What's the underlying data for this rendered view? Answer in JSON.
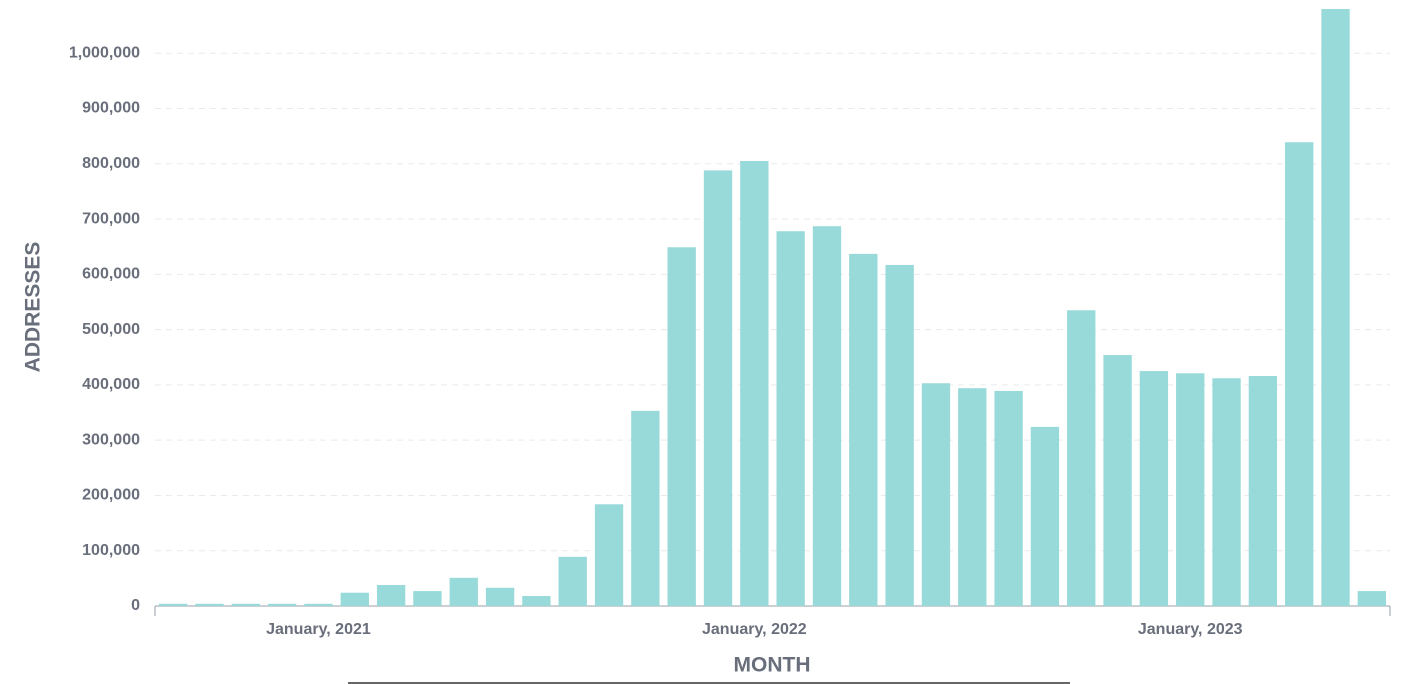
{
  "chart_data": {
    "type": "bar",
    "x_label": "MONTH",
    "y_label": "ADDRESSES",
    "categories": [
      null,
      null,
      null,
      null,
      "January, 2021",
      null,
      null,
      null,
      null,
      null,
      null,
      null,
      null,
      null,
      null,
      null,
      "January, 2022",
      null,
      null,
      null,
      null,
      null,
      null,
      null,
      null,
      null,
      null,
      null,
      "January, 2023",
      null,
      null,
      null,
      null,
      null
    ],
    "values": [
      4000,
      4000,
      4000,
      4000,
      4000,
      24000,
      38000,
      27000,
      51000,
      33000,
      18000,
      89000,
      184000,
      353000,
      649000,
      788000,
      805000,
      678000,
      687000,
      637000,
      617000,
      403000,
      394000,
      389000,
      324000,
      535000,
      454000,
      425000,
      421000,
      412000,
      416000,
      839000,
      1080000,
      27000
    ],
    "color": "#98d9d9",
    "ylim": [
      0,
      1080000
    ],
    "yticks": [
      0,
      {
        "value": 100000,
        "label": "100,000"
      },
      {
        "value": 200000,
        "label": "200,000"
      },
      {
        "value": 300000,
        "label": "300,000"
      },
      {
        "value": 400000,
        "label": "400,000"
      },
      {
        "value": 500000,
        "label": "500,000"
      },
      {
        "value": 600000,
        "label": "600,000"
      },
      {
        "value": 700000,
        "label": "700,000"
      },
      {
        "value": 800000,
        "label": "800,000"
      },
      {
        "value": 900000,
        "label": "900,000"
      },
      {
        "value": 1000000,
        "label": "1,000,000"
      }
    ],
    "grid": true
  }
}
